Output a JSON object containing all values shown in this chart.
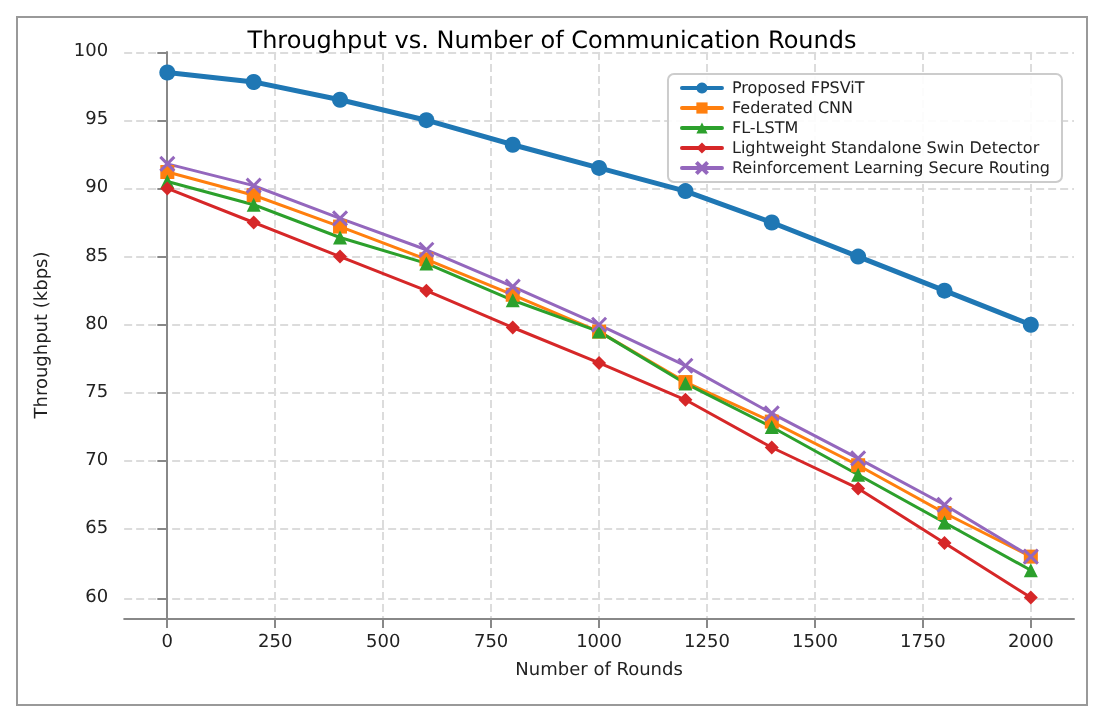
{
  "chart_data": {
    "type": "line",
    "title": "Throughput vs. Number of Communication Rounds",
    "xlabel": "Number of Rounds",
    "ylabel": "Throughput (kbps)",
    "x": [
      0,
      200,
      400,
      600,
      800,
      1000,
      1200,
      1400,
      1600,
      1800,
      2000
    ],
    "series": [
      {
        "name": "Proposed FPSViT",
        "color": "#1f77b4",
        "marker": "circle",
        "values": [
          98.5,
          97.8,
          96.5,
          95,
          93.2,
          91.5,
          89.8,
          87.5,
          85,
          82.5,
          80
        ]
      },
      {
        "name": "Federated CNN",
        "color": "#ff7f0e",
        "marker": "square",
        "values": [
          91.2,
          89.5,
          87.2,
          84.8,
          82.2,
          79.5,
          75.8,
          72.9,
          69.7,
          66.2,
          63
        ]
      },
      {
        "name": "FL-LSTM",
        "color": "#2ca02c",
        "marker": "triangle",
        "values": [
          90.5,
          88.8,
          86.4,
          84.5,
          81.8,
          79.5,
          75.7,
          72.5,
          69,
          65.5,
          62
        ]
      },
      {
        "name": "Lightweight Standalone Swin Detector",
        "color": "#d62728",
        "marker": "diamond",
        "values": [
          90,
          87.5,
          85,
          82.5,
          79.8,
          77.2,
          74.5,
          71,
          68,
          64,
          60
        ]
      },
      {
        "name": "Reinforcement Learning Secure Routing",
        "color": "#9467bd",
        "marker": "cross",
        "values": [
          91.8,
          90.2,
          87.8,
          85.5,
          82.8,
          80,
          77,
          73.5,
          70.2,
          66.8,
          63
        ]
      }
    ],
    "xlim": [
      -100,
      2100
    ],
    "xticks": [
      0,
      250,
      500,
      750,
      1000,
      1250,
      1500,
      1750,
      2000
    ],
    "ylim": [
      58.5,
      100
    ],
    "yticks": [
      60,
      65,
      70,
      75,
      80,
      85,
      90,
      95,
      100
    ],
    "grid": true,
    "legend": "top right",
    "line_style": "solid"
  }
}
